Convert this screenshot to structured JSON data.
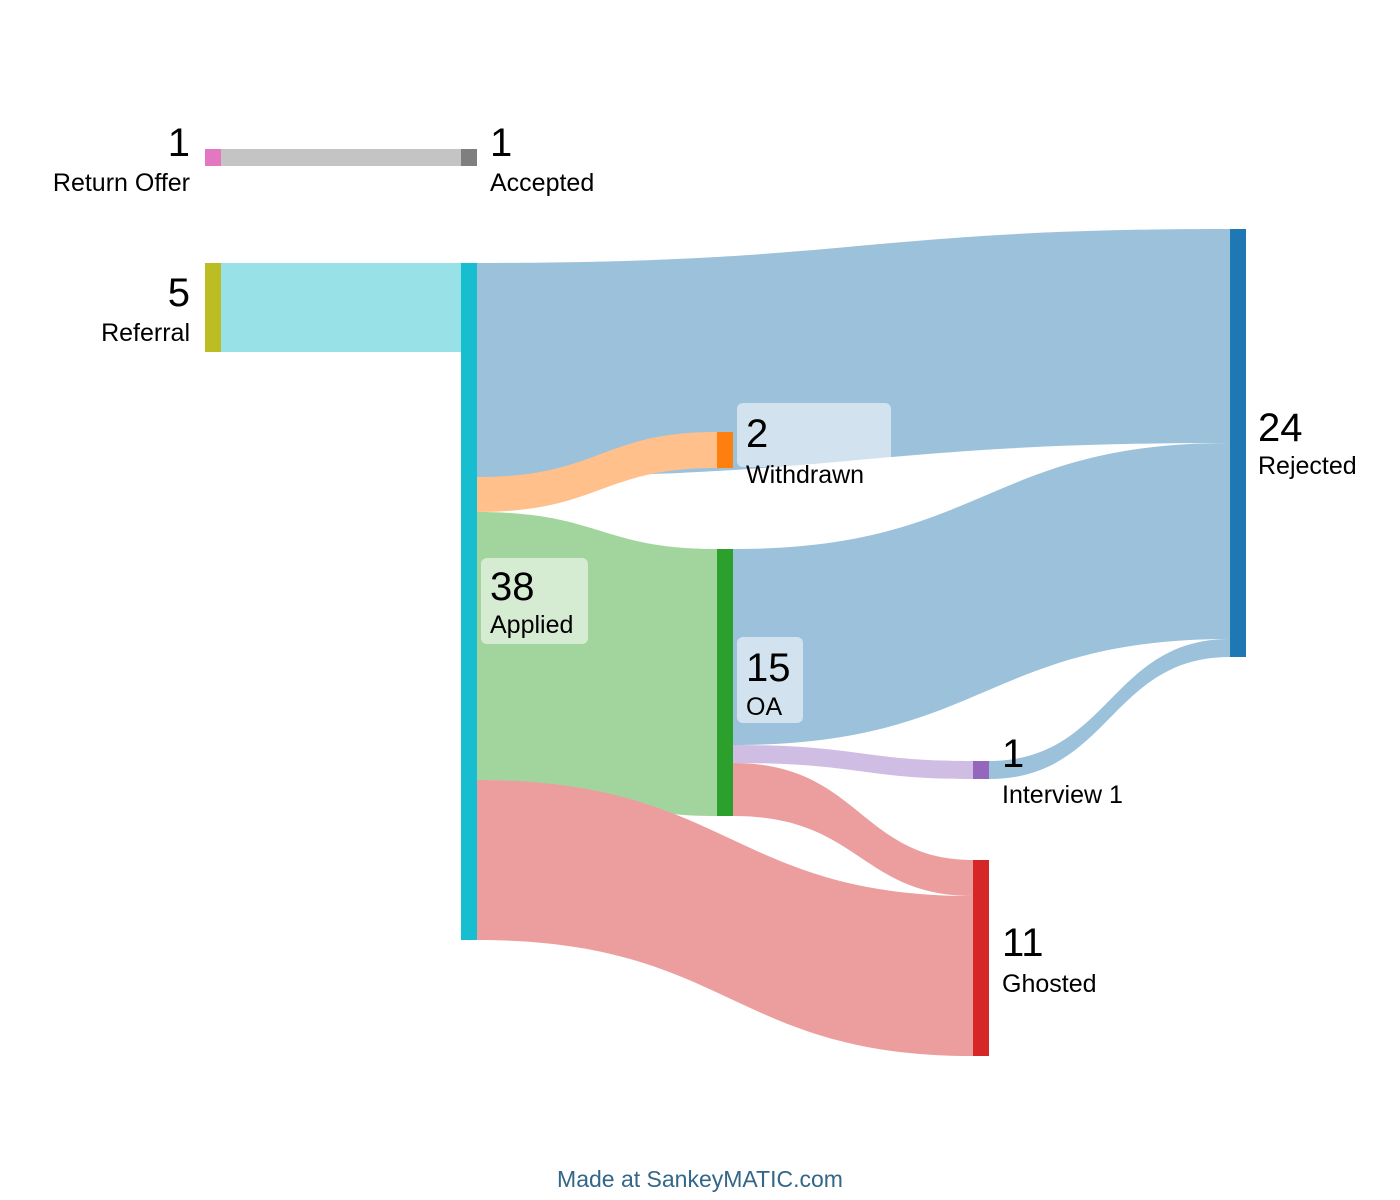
{
  "chart_data": {
    "type": "sankey",
    "nodes": [
      {
        "id": "return_offer",
        "value": "1",
        "label": "Return Offer",
        "color": "#e377c2"
      },
      {
        "id": "accepted",
        "value": "1",
        "label": "Accepted",
        "color": "#7f7f7f"
      },
      {
        "id": "referral",
        "value": "5",
        "label": "Referral",
        "color": "#bcbd22"
      },
      {
        "id": "applied",
        "value": "38",
        "label": "Applied",
        "color": "#17becf"
      },
      {
        "id": "withdrawn",
        "value": "2",
        "label": "Withdrawn",
        "color": "#ff7f0e"
      },
      {
        "id": "oa",
        "value": "15",
        "label": "OA",
        "color": "#2ca02c"
      },
      {
        "id": "interview1",
        "value": "1",
        "label": "Interview 1",
        "color": "#9467bd"
      },
      {
        "id": "rejected",
        "value": "24",
        "label": "Rejected",
        "color": "#1f77b4"
      },
      {
        "id": "ghosted",
        "value": "11",
        "label": "Ghosted",
        "color": "#d62728"
      }
    ],
    "flows": [
      {
        "from": "Return Offer",
        "to": "Accepted",
        "value": 1
      },
      {
        "from": "Referral",
        "to": "Applied",
        "value": 5
      },
      {
        "from": "Applied",
        "to": "Rejected",
        "value": 12
      },
      {
        "from": "Applied",
        "to": "Withdrawn",
        "value": 2
      },
      {
        "from": "Applied",
        "to": "OA",
        "value": 15
      },
      {
        "from": "Applied",
        "to": "Ghosted",
        "value": 9
      },
      {
        "from": "OA",
        "to": "Rejected",
        "value": 11
      },
      {
        "from": "OA",
        "to": "Interview 1",
        "value": 1
      },
      {
        "from": "OA",
        "to": "Ghosted",
        "value": 2
      },
      {
        "from": "Interview 1",
        "to": "Rejected",
        "value": 1
      }
    ]
  },
  "footer": {
    "credit": "Made at SankeyMATIC.com"
  }
}
